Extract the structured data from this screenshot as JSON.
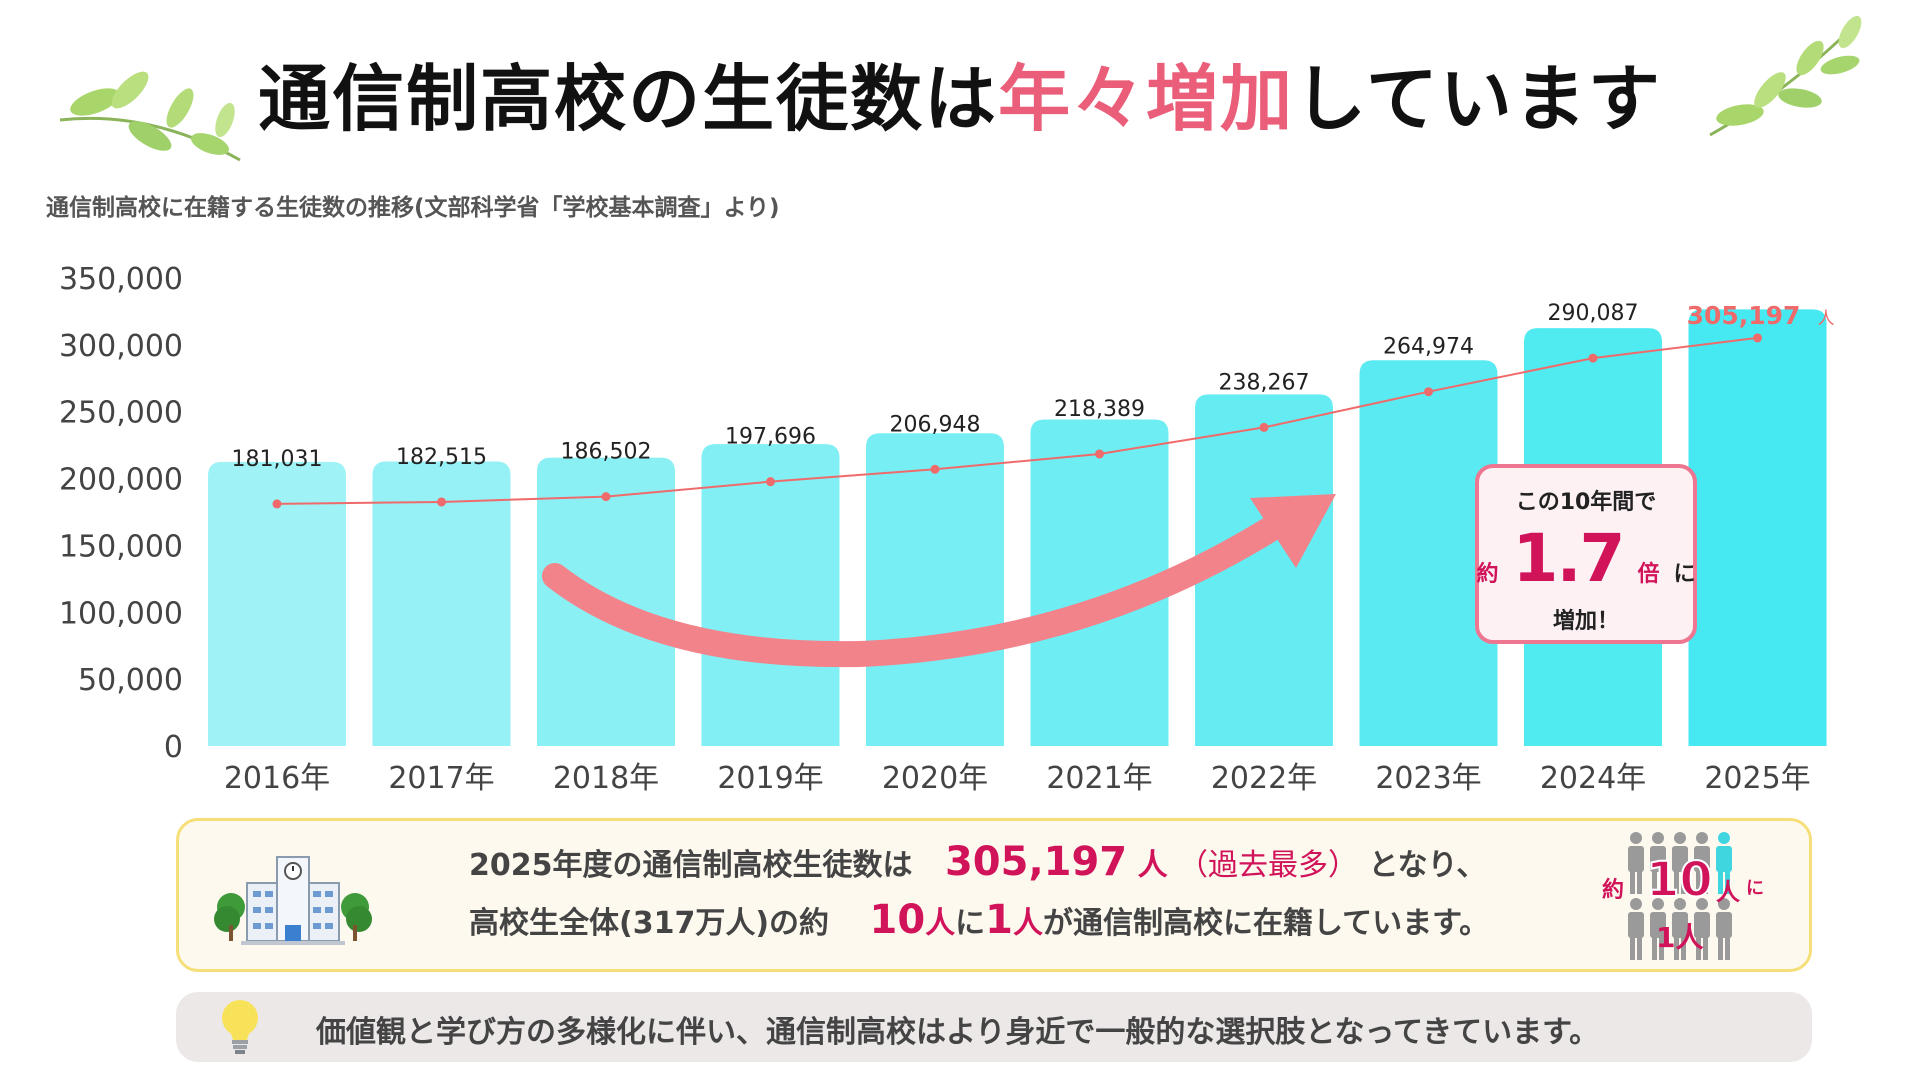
{
  "title": {
    "part1": "通信制高校の生徒数は",
    "highlight": "年々増加",
    "part2": "しています"
  },
  "subtitle": "通信制高校に在籍する生徒数の推移(文部科学省「学校基本調査」より)",
  "colors": {
    "accent_pink": "#ea5e7a",
    "bar_light": "#9ff2f5",
    "bar_dark": "#46e9f1",
    "trend_line": "#ef6b6b"
  },
  "chart_data": {
    "type": "bar",
    "categories": [
      "2016年",
      "2017年",
      "2018年",
      "2019年",
      "2020年",
      "2021年",
      "2022年",
      "2023年",
      "2024年",
      "2025年"
    ],
    "values": [
      181031,
      182515,
      186502,
      197696,
      206948,
      218389,
      238267,
      264974,
      290087,
      305197
    ],
    "data_labels": [
      "181,031",
      "182,515",
      "186,502",
      "197,696",
      "206,948",
      "218,389",
      "238,267",
      "264,974",
      "290,087",
      "305,197"
    ],
    "last_label_unit": "人",
    "yticks": [
      0,
      50000,
      100000,
      150000,
      200000,
      250000,
      300000,
      350000
    ],
    "ytick_labels": [
      "0",
      "50,000",
      "100,000",
      "150,000",
      "200,000",
      "250,000",
      "300,000",
      "350,000"
    ],
    "ylim": [
      0,
      350000
    ],
    "overlay_line": true,
    "grid": false,
    "legend": "none"
  },
  "callout": {
    "line1": "この10年間で",
    "prefix": "約",
    "big": "1.7",
    "suffix": "倍",
    "ni": "に",
    "line3": "増加！"
  },
  "info": {
    "line1_a": "2025年度の通信制高校生徒数は",
    "line1_num": "305,197",
    "line1_unit": "人",
    "line1_paren": "（過去最多）",
    "line1_b": "となり、",
    "line2_a": "高校生全体(317万人)の約",
    "line2_num1": "10",
    "line2_unit1": "人",
    "line2_ni": "に",
    "line2_num2": "1",
    "line2_unit2": "人",
    "line2_b": "が通信制高校に在籍しています。",
    "ratio_prefix": "約",
    "ratio_num": "10",
    "ratio_unit": "人",
    "ratio_ni": "に",
    "ratio_one": "1人"
  },
  "notice": {
    "text": "価値観と学び方の多様化に伴い、通信制高校はより身近で一般的な選択肢となってきています。"
  },
  "icons": {
    "leaves": "leaf-branch-icon",
    "school": "school-building-icon",
    "people": "people-icon",
    "bulb": "lightbulb-icon",
    "arrow": "curved-arrow-icon"
  }
}
